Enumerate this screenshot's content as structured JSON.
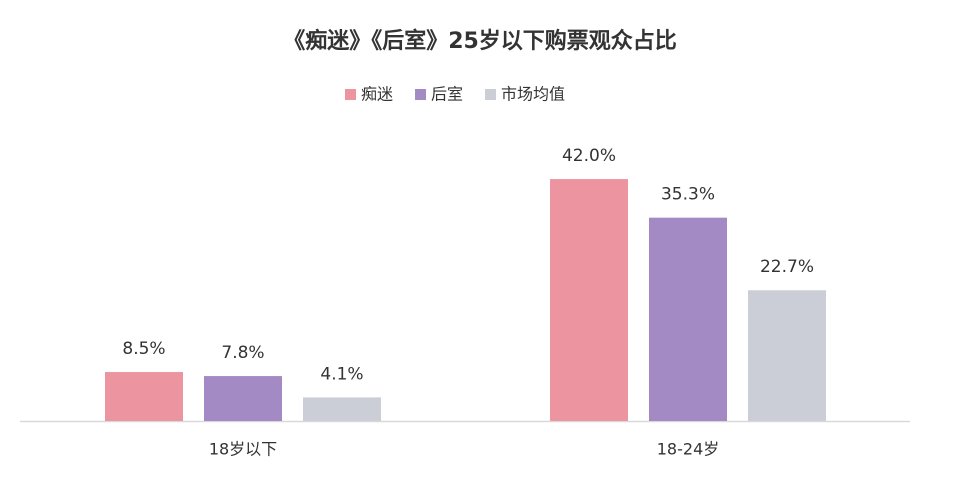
{
  "chart_data": {
    "type": "bar",
    "title": "《痴迷》《后室》25岁以下购票观众占比",
    "categories": [
      "18岁以下",
      "18-24岁"
    ],
    "series": [
      {
        "name": "痴迷",
        "color": "#ec95a0",
        "values": [
          8.5,
          42.0
        ],
        "value_labels": [
          "8.5%",
          "42.0%"
        ]
      },
      {
        "name": "后室",
        "color": "#a48ac4",
        "values": [
          7.8,
          35.3
        ],
        "value_labels": [
          "7.8%",
          "35.3%"
        ]
      },
      {
        "name": "市场均值",
        "color": "#cbced6",
        "values": [
          4.1,
          22.7
        ],
        "value_labels": [
          "4.1%",
          "22.7%"
        ]
      }
    ],
    "legend": "top"
  }
}
